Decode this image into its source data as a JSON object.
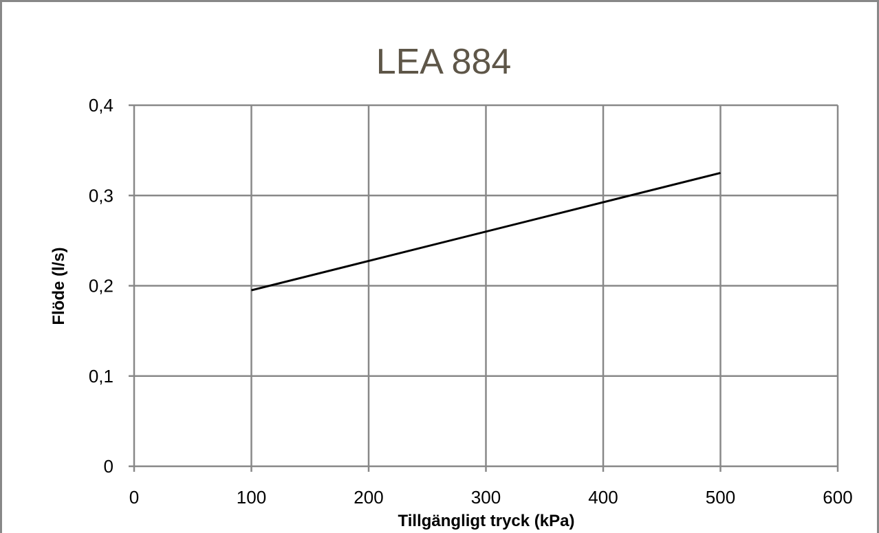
{
  "chart_data": {
    "type": "line",
    "title": "LEA 884",
    "xlabel": "Tillgängligt tryck (kPa)",
    "ylabel": "Flöde (l/s)",
    "xlim": [
      0,
      600
    ],
    "ylim": [
      0,
      0.4
    ],
    "x_ticks": [
      "0",
      "100",
      "200",
      "300",
      "400",
      "500",
      "600"
    ],
    "y_ticks": [
      "0",
      "0,1",
      "0,2",
      "0,3",
      "0,4"
    ],
    "grid": true,
    "series": [
      {
        "x": [
          100,
          500
        ],
        "y": [
          0.195,
          0.325
        ],
        "color": "#000000"
      }
    ],
    "colors": {
      "title": "#5e5648",
      "grid": "#888888",
      "line": "#000000",
      "frame": "#888888"
    }
  }
}
